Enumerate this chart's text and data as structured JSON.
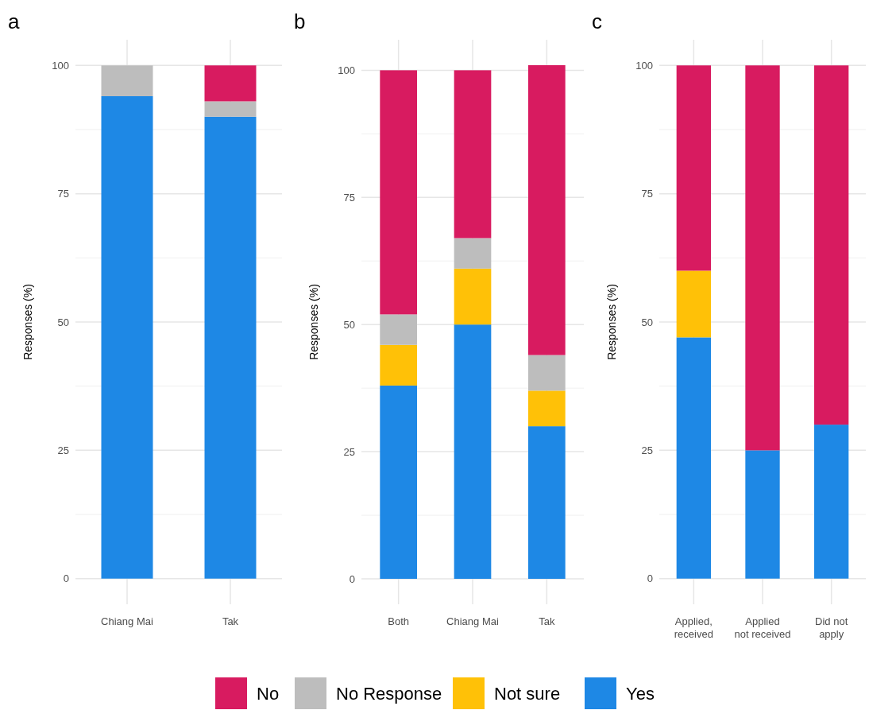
{
  "chart_data": [
    {
      "type": "bar",
      "title": "a",
      "ylabel": "Responses (%)",
      "categories": [
        "Chiang Mai",
        "Tak"
      ],
      "stacked": true,
      "ylim": [
        -5,
        105
      ],
      "yticks": [
        0,
        25,
        50,
        75,
        100
      ],
      "grid": true,
      "legend": "bottom",
      "series": [
        {
          "name": "Yes",
          "color": "#1e88e5",
          "values": [
            94,
            90
          ]
        },
        {
          "name": "Not sure",
          "color": "#ffc107",
          "values": [
            0,
            0
          ]
        },
        {
          "name": "No Response",
          "color": "#bdbdbd",
          "values": [
            6,
            3
          ]
        },
        {
          "name": "No",
          "color": "#d81b60",
          "values": [
            0,
            7
          ]
        }
      ]
    },
    {
      "type": "bar",
      "title": "b",
      "ylabel": "Responses (%)",
      "categories": [
        "Both",
        "Chiang Mai",
        "Tak"
      ],
      "stacked": true,
      "ylim": [
        -5,
        106
      ],
      "yticks": [
        0,
        25,
        50,
        75,
        100
      ],
      "grid": true,
      "series": [
        {
          "color": "#1e88e5",
          "values": [
            38,
            50,
            30
          ]
        },
        {
          "color": "#ffc107",
          "values": [
            8,
            11,
            7
          ]
        },
        {
          "color": "#bdbdbd",
          "values": [
            6,
            6,
            7
          ]
        },
        {
          "color": "#d81b60",
          "values": [
            48,
            33,
            57
          ]
        }
      ]
    },
    {
      "type": "bar",
      "title": "c",
      "ylabel": "Responses (%)",
      "categories": [
        "Applied,\nreceived",
        "Applied\nnot received",
        "Did not\napply"
      ],
      "stacked": true,
      "ylim": [
        -5,
        105
      ],
      "yticks": [
        0,
        25,
        50,
        75,
        100
      ],
      "grid": true,
      "series": [
        {
          "color": "#1e88e5",
          "values": [
            47,
            25,
            30
          ]
        },
        {
          "color": "#ffc107",
          "values": [
            13,
            0,
            0
          ]
        },
        {
          "color": "#d81b60",
          "values": [
            40,
            75,
            70
          ]
        }
      ]
    }
  ]
}
